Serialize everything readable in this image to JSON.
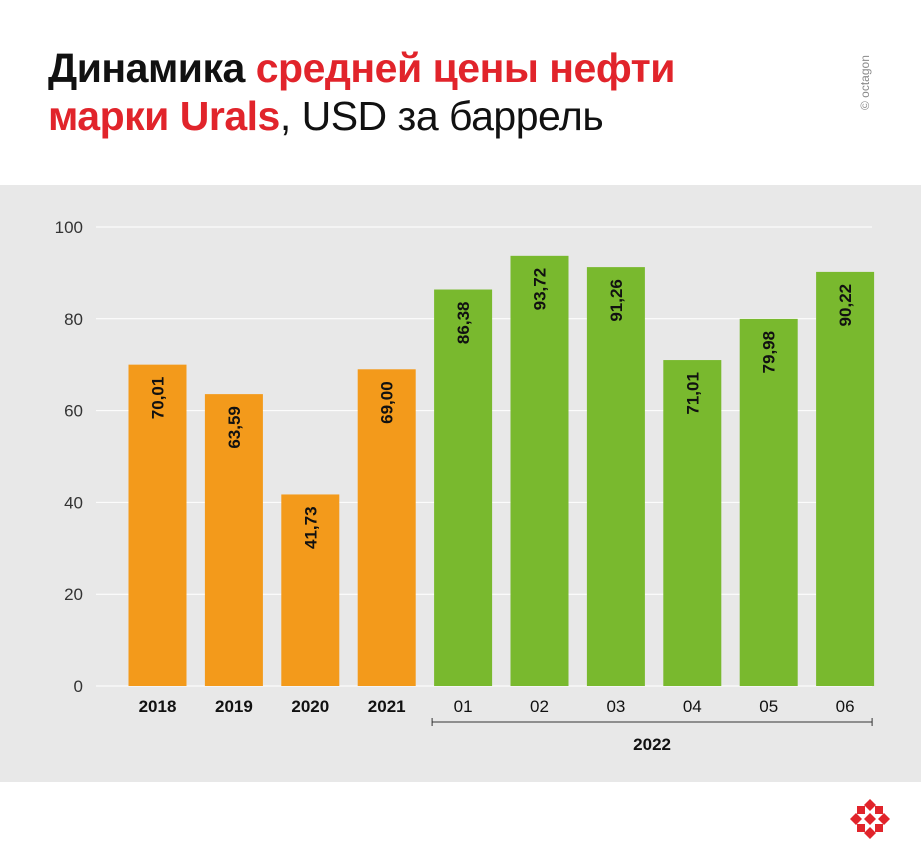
{
  "title": {
    "part1": "Динамика ",
    "part2": "средней цены нефти",
    "part3": "марки Urals",
    "part4": ", USD за баррель"
  },
  "copyright": "© octagon",
  "colors": {
    "annual": "#f39a1b",
    "monthly": "#79b92e",
    "accent": "#e1242b"
  },
  "chart_data": {
    "type": "bar",
    "categories": [
      "2018",
      "2019",
      "2020",
      "2021",
      "01",
      "02",
      "03",
      "04",
      "05",
      "06"
    ],
    "values": [
      70.01,
      63.59,
      41.73,
      69.0,
      86.38,
      93.72,
      91.26,
      71.01,
      79.98,
      90.22
    ],
    "value_labels": [
      "70,01",
      "63,59",
      "41,73",
      "69,00",
      "86,38",
      "93,72",
      "91,26",
      "71,01",
      "79,98",
      "90,22"
    ],
    "category_bold": [
      true,
      true,
      true,
      true,
      false,
      false,
      false,
      false,
      false,
      false
    ],
    "bar_colors": [
      "annual",
      "annual",
      "annual",
      "annual",
      "monthly",
      "monthly",
      "monthly",
      "monthly",
      "monthly",
      "monthly"
    ],
    "group_label": "2022",
    "ylim": [
      0,
      100
    ],
    "yticks": [
      0,
      20,
      40,
      60,
      80,
      100
    ],
    "grid": true
  }
}
